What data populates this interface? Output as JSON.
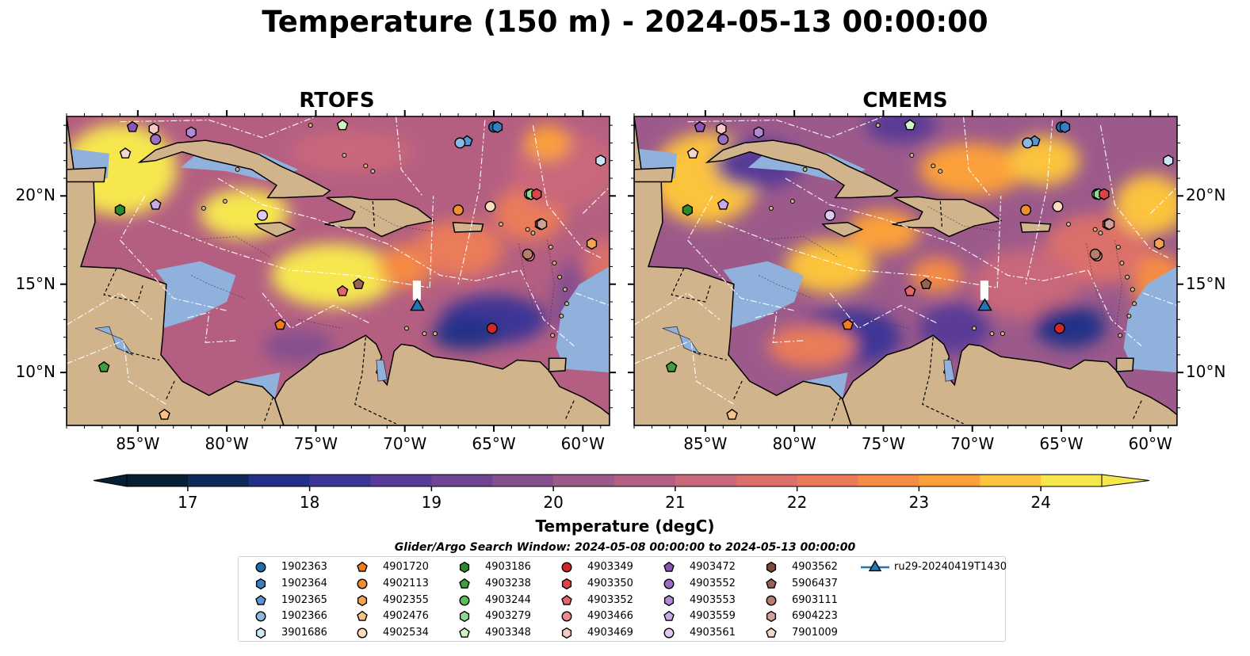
{
  "title": "Temperature (150 m) - 2024-05-13 00:00:00",
  "panels": [
    {
      "title": "RTOFS"
    },
    {
      "title": "CMEMS"
    }
  ],
  "x_ticks": [
    "85°W",
    "80°W",
    "75°W",
    "70°W",
    "65°W",
    "60°W"
  ],
  "x_tick_values": [
    -85,
    -80,
    -75,
    -70,
    -65,
    -60
  ],
  "y_ticks": [
    "20°N",
    "15°N",
    "10°N"
  ],
  "y_tick_values": [
    20,
    15,
    10
  ],
  "map_extent": {
    "lon": [
      -89,
      -58.5
    ],
    "lat": [
      7,
      24.5
    ]
  },
  "colorbar": {
    "label": "Temperature (degC)",
    "ticks": [
      "17",
      "18",
      "19",
      "20",
      "21",
      "22",
      "23",
      "24"
    ],
    "tick_values": [
      17,
      18,
      19,
      20,
      21,
      22,
      23,
      24
    ],
    "range": [
      16.5,
      24.5
    ],
    "colors": [
      "#061f33",
      "#0d2a58",
      "#243088",
      "#3d3596",
      "#583b96",
      "#6e4592",
      "#86508f",
      "#9c5a8b",
      "#b45f82",
      "#c9687a",
      "#db6f6b",
      "#ea7b5a",
      "#f58b45",
      "#fba03a",
      "#fcc33e",
      "#f6e74f"
    ]
  },
  "legend_title": "Glider/Argo Search Window: 2024-05-08 00:00:00 to 2024-05-13 00:00:00",
  "legend": [
    {
      "label": "1902363",
      "marker": "circle",
      "color": "#1f6fb0"
    },
    {
      "label": "1902364",
      "marker": "hexagon",
      "color": "#3a7fc0"
    },
    {
      "label": "1902365",
      "marker": "pentagon",
      "color": "#5a96d0"
    },
    {
      "label": "1902366",
      "marker": "circle",
      "color": "#8ab8e0"
    },
    {
      "label": "3901686",
      "marker": "hexagon",
      "color": "#cfe6f7"
    },
    {
      "label": "4901720",
      "marker": "pentagon",
      "color": "#f07e1a"
    },
    {
      "label": "4902113",
      "marker": "circle",
      "color": "#f29030"
    },
    {
      "label": "4902355",
      "marker": "hexagon",
      "color": "#f5a455"
    },
    {
      "label": "4902476",
      "marker": "pentagon",
      "color": "#f8c18a"
    },
    {
      "label": "4902534",
      "marker": "circle",
      "color": "#fbdcbc"
    },
    {
      "label": "4903186",
      "marker": "hexagon",
      "color": "#2c8a2c"
    },
    {
      "label": "4903238",
      "marker": "pentagon",
      "color": "#3ca03c"
    },
    {
      "label": "4903244",
      "marker": "circle",
      "color": "#58be58"
    },
    {
      "label": "4903279",
      "marker": "hexagon",
      "color": "#8fd88f"
    },
    {
      "label": "4903348",
      "marker": "pentagon",
      "color": "#cff3c2"
    },
    {
      "label": "4903349",
      "marker": "circle",
      "color": "#d62728"
    },
    {
      "label": "4903350",
      "marker": "hexagon",
      "color": "#dc4448"
    },
    {
      "label": "4903352",
      "marker": "pentagon",
      "color": "#e66469"
    },
    {
      "label": "4903466",
      "marker": "circle",
      "color": "#ef8b8c"
    },
    {
      "label": "4903469",
      "marker": "hexagon",
      "color": "#f7c8c6"
    },
    {
      "label": "4903472",
      "marker": "pentagon",
      "color": "#8a55b5"
    },
    {
      "label": "4903552",
      "marker": "circle",
      "color": "#9c6cc5"
    },
    {
      "label": "4903553",
      "marker": "hexagon",
      "color": "#b08ad5"
    },
    {
      "label": "4903559",
      "marker": "pentagon",
      "color": "#c9aae4"
    },
    {
      "label": "4903561",
      "marker": "circle",
      "color": "#e0c9f0"
    },
    {
      "label": "4903562",
      "marker": "hexagon",
      "color": "#7d4a3c"
    },
    {
      "label": "5906437",
      "marker": "pentagon",
      "color": "#9b6151"
    },
    {
      "label": "6903111",
      "marker": "circle",
      "color": "#b77e70"
    },
    {
      "label": "6904223",
      "marker": "hexagon",
      "color": "#cfa298"
    },
    {
      "label": "7901009",
      "marker": "pentagon",
      "color": "#f3d6cc"
    },
    {
      "label": "ru29-20240419T1430",
      "marker": "triangle-line",
      "color": "#1f77b4"
    }
  ],
  "observations": [
    {
      "id": "1902363",
      "lon": -65.0,
      "lat": 23.9
    },
    {
      "id": "1902364",
      "lon": -64.8,
      "lat": 23.9
    },
    {
      "id": "1902365",
      "lon": -66.5,
      "lat": 23.1
    },
    {
      "id": "1902366",
      "lon": -66.9,
      "lat": 23.0
    },
    {
      "id": "3901686",
      "lon": -59.0,
      "lat": 22.0
    },
    {
      "id": "4901720",
      "lon": -77.0,
      "lat": 12.7
    },
    {
      "id": "4902113",
      "lon": -67.0,
      "lat": 19.2
    },
    {
      "id": "4902355",
      "lon": -59.5,
      "lat": 17.3
    },
    {
      "id": "4902476",
      "lon": -83.5,
      "lat": 7.6
    },
    {
      "id": "4902534",
      "lon": -65.2,
      "lat": 19.4
    },
    {
      "id": "4903186",
      "lon": -86.0,
      "lat": 19.2
    },
    {
      "id": "4903238",
      "lon": -86.9,
      "lat": 10.3
    },
    {
      "id": "4903244",
      "lon": -63.0,
      "lat": 20.1
    },
    {
      "id": "4903279",
      "lon": -62.9,
      "lat": 20.1
    },
    {
      "id": "4903348",
      "lon": -73.5,
      "lat": 24.0
    },
    {
      "id": "4903349",
      "lon": -65.1,
      "lat": 12.5
    },
    {
      "id": "4903350",
      "lon": -62.6,
      "lat": 20.1
    },
    {
      "id": "4903352",
      "lon": -73.5,
      "lat": 14.6
    },
    {
      "id": "4903466",
      "lon": -63.0,
      "lat": 16.6
    },
    {
      "id": "4903469",
      "lon": -84.1,
      "lat": 23.8
    },
    {
      "id": "4903472",
      "lon": -85.3,
      "lat": 23.9
    },
    {
      "id": "4903552",
      "lon": -84.0,
      "lat": 23.2
    },
    {
      "id": "4903553",
      "lon": -82.0,
      "lat": 23.6
    },
    {
      "id": "4903559",
      "lon": -84.0,
      "lat": 19.5
    },
    {
      "id": "4903561",
      "lon": -78.0,
      "lat": 18.9
    },
    {
      "id": "4903562",
      "lon": -62.4,
      "lat": 18.4
    },
    {
      "id": "5906437",
      "lon": -72.6,
      "lat": 15.0
    },
    {
      "id": "6903111",
      "lon": -63.1,
      "lat": 16.7
    },
    {
      "id": "6904223",
      "lon": -62.3,
      "lat": 18.4
    },
    {
      "id": "7901009",
      "lon": -85.7,
      "lat": 22.4
    }
  ],
  "glider": {
    "id": "ru29-20240419T1430",
    "lon": -69.3,
    "lat": 13.8
  }
}
